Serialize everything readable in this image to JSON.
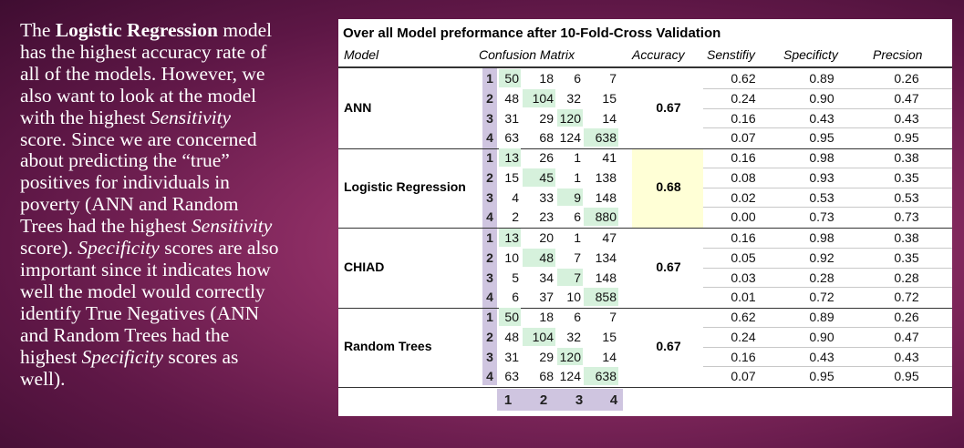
{
  "description": {
    "line1a": "The ",
    "line1b": "Logistic Regression",
    "line1c": " model",
    "line2": "has the highest accuracy rate of",
    "line3": "all of the models. However, we",
    "line4": "also want to look at the model",
    "line5a": "with the highest ",
    "line5b": "Sensitivity",
    "line6": "score. Since we are concerned",
    "line7": "about predicting the “true”",
    "line8": "positives for individuals in",
    "line9": "poverty (ANN and Random",
    "line10a": "Trees had the highest ",
    "line10b": "Sensitivity",
    "line11a": "score). ",
    "line11b": "Specificity",
    "line11c": " scores are also",
    "line12": "important since it indicates how",
    "line13": "well the model would correctly",
    "line14": "identify True Negatives (ANN",
    "line15": "and Random Trees had the",
    "line16a": "highest ",
    "line16b": "Specificity",
    "line16c": " scores as",
    "line17": "well)."
  },
  "table": {
    "title": "Over all Model preformance after 10-Fold-Cross Validation",
    "headers": {
      "model": "Model",
      "confusion": "Confusion Matrix",
      "accuracy": "Accuracy",
      "sensitivity": "Senstifiy",
      "specificity": "Specificty",
      "precision": "Precsion"
    },
    "row_index": [
      "1",
      "2",
      "3",
      "4"
    ],
    "footer_index": [
      "1",
      "2",
      "3",
      "4"
    ],
    "models": [
      {
        "name": "ANN",
        "matrix": [
          [
            "50",
            "18",
            "6",
            "7"
          ],
          [
            "48",
            "104",
            "32",
            "15"
          ],
          [
            "31",
            "29",
            "120",
            "14"
          ],
          [
            "63",
            "68",
            "124",
            "638"
          ]
        ],
        "accuracy": "0.67",
        "sensitivity": [
          "0.62",
          "0.24",
          "0.16",
          "0.07"
        ],
        "specificity": [
          "0.89",
          "0.90",
          "0.43",
          "0.95"
        ],
        "precision": [
          "0.26",
          "0.47",
          "0.43",
          "0.95"
        ]
      },
      {
        "name": "Logistic Regression",
        "matrix": [
          [
            "13",
            "26",
            "1",
            "41"
          ],
          [
            "15",
            "45",
            "1",
            "138"
          ],
          [
            "4",
            "33",
            "9",
            "148"
          ],
          [
            "2",
            "23",
            "6",
            "880"
          ]
        ],
        "accuracy": "0.68",
        "sensitivity": [
          "0.16",
          "0.08",
          "0.02",
          "0.00"
        ],
        "specificity": [
          "0.98",
          "0.93",
          "0.53",
          "0.73"
        ],
        "precision": [
          "0.38",
          "0.35",
          "0.53",
          "0.73"
        ]
      },
      {
        "name": "CHIAD",
        "matrix": [
          [
            "13",
            "20",
            "1",
            "47"
          ],
          [
            "10",
            "48",
            "7",
            "134"
          ],
          [
            "5",
            "34",
            "7",
            "148"
          ],
          [
            "6",
            "37",
            "10",
            "858"
          ]
        ],
        "accuracy": "0.67",
        "sensitivity": [
          "0.16",
          "0.05",
          "0.03",
          "0.01"
        ],
        "specificity": [
          "0.98",
          "0.92",
          "0.28",
          "0.72"
        ],
        "precision": [
          "0.38",
          "0.35",
          "0.28",
          "0.72"
        ]
      },
      {
        "name": "Random Trees",
        "matrix": [
          [
            "50",
            "18",
            "6",
            "7"
          ],
          [
            "48",
            "104",
            "32",
            "15"
          ],
          [
            "31",
            "29",
            "120",
            "14"
          ],
          [
            "63",
            "68",
            "124",
            "638"
          ]
        ],
        "accuracy": "0.67",
        "sensitivity": [
          "0.62",
          "0.24",
          "0.16",
          "0.07"
        ],
        "specificity": [
          "0.89",
          "0.90",
          "0.43",
          "0.95"
        ],
        "precision": [
          "0.26",
          "0.47",
          "0.43",
          "0.95"
        ]
      }
    ],
    "colors": {
      "index_bg": "#cfc5e0",
      "diagonal_bg": "#d6f1dc",
      "highlight_bg": "#ffffd6"
    }
  }
}
